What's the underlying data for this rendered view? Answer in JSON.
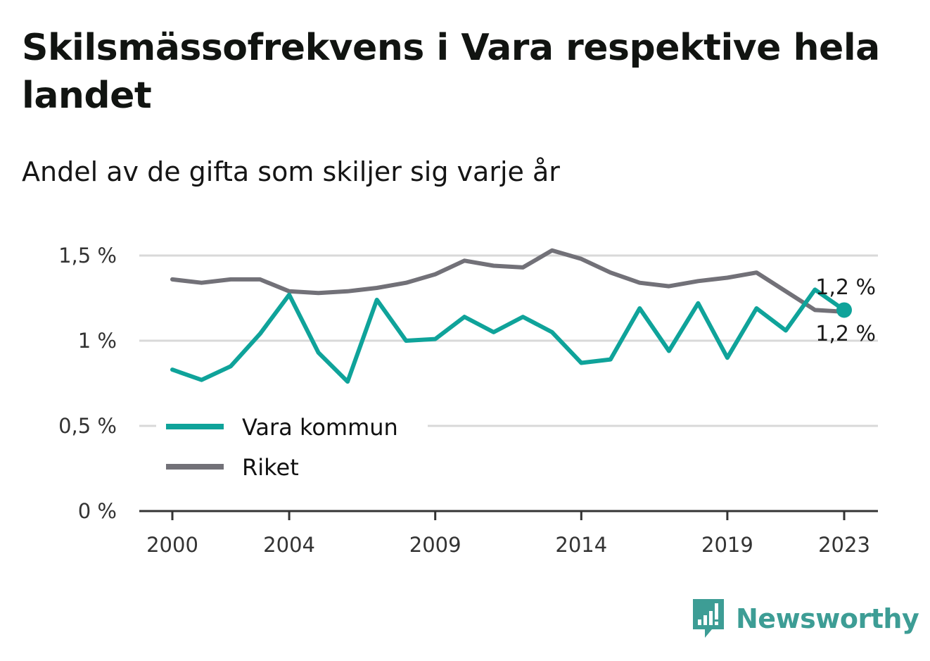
{
  "title": "Skilsmässofrekvens i Vara respektive hela landet",
  "subtitle": "Andel av de gifta som skiljer sig varje år",
  "brand": {
    "name": "Newsworthy",
    "icon": "newsworthy-logo-icon",
    "color": "#3d9d95"
  },
  "colors": {
    "vara": "#0fa39a",
    "riket": "#727178",
    "grid": "#d9d9d9",
    "axis": "#333333"
  },
  "chart_data": {
    "type": "line",
    "x": [
      2000,
      2001,
      2002,
      2003,
      2004,
      2005,
      2006,
      2007,
      2008,
      2009,
      2010,
      2011,
      2012,
      2013,
      2014,
      2015,
      2016,
      2017,
      2018,
      2019,
      2020,
      2021,
      2022,
      2023
    ],
    "x_ticks": [
      "2000",
      "2004",
      "2009",
      "2014",
      "2019",
      "2023"
    ],
    "y_ticks": [
      {
        "value": 0,
        "label": "0 %"
      },
      {
        "value": 0.5,
        "label": "0,5 %"
      },
      {
        "value": 1,
        "label": "1 %"
      },
      {
        "value": 1.5,
        "label": "1,5 %"
      }
    ],
    "ylim": [
      0,
      1.5
    ],
    "grid": true,
    "legend_position": "bottom-left",
    "series": [
      {
        "name": "Vara kommun",
        "color": "#0fa39a",
        "values": [
          0.83,
          0.77,
          0.85,
          1.04,
          1.27,
          0.93,
          0.76,
          1.24,
          1.0,
          1.01,
          1.14,
          1.05,
          1.14,
          1.05,
          0.87,
          0.89,
          1.19,
          0.94,
          1.22,
          0.9,
          1.19,
          1.06,
          1.3,
          1.18
        ],
        "end_label": "1,2 %"
      },
      {
        "name": "Riket",
        "color": "#727178",
        "values": [
          1.36,
          1.34,
          1.36,
          1.36,
          1.29,
          1.28,
          1.29,
          1.31,
          1.34,
          1.39,
          1.47,
          1.44,
          1.43,
          1.53,
          1.48,
          1.4,
          1.34,
          1.32,
          1.35,
          1.37,
          1.4,
          1.29,
          1.18,
          1.17
        ],
        "end_label": "1,2 %"
      }
    ]
  }
}
